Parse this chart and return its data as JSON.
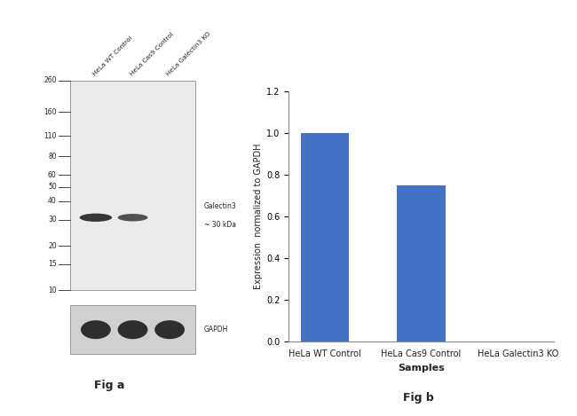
{
  "fig_a_label": "Fig a",
  "fig_b_label": "Fig b",
  "wb_title_labels": [
    "HeLa WT Control",
    "HeLa Cas9 Control",
    "HeLa Galectin3 KO"
  ],
  "wb_mw_markers": [
    260,
    160,
    110,
    80,
    60,
    50,
    40,
    30,
    20,
    15,
    10
  ],
  "wb_annotation_line1": "Galectin3",
  "wb_annotation_line2": "~ 30 kDa",
  "wb_gapdh_label": "GAPDH",
  "bar_categories": [
    "HeLa WT Control",
    "HeLa Cas9 Control",
    "HeLa Galectin3 KO"
  ],
  "bar_values": [
    1.0,
    0.75,
    0.0
  ],
  "bar_color": "#4472C4",
  "bar_ylim": [
    0,
    1.2
  ],
  "bar_yticks": [
    0,
    0.2,
    0.4,
    0.6,
    0.8,
    1.0,
    1.2
  ],
  "bar_ylabel": "Expression  normalized to GAPDH",
  "bar_xlabel": "Samples",
  "bg_color": "#ffffff",
  "wb_main_bg": "#ebebeb",
  "wb_gapdh_bg": "#d0d0d0",
  "band_dark": "#1a1a1a",
  "tick_color": "#444444",
  "text_color": "#222222",
  "spine_color": "#888888"
}
